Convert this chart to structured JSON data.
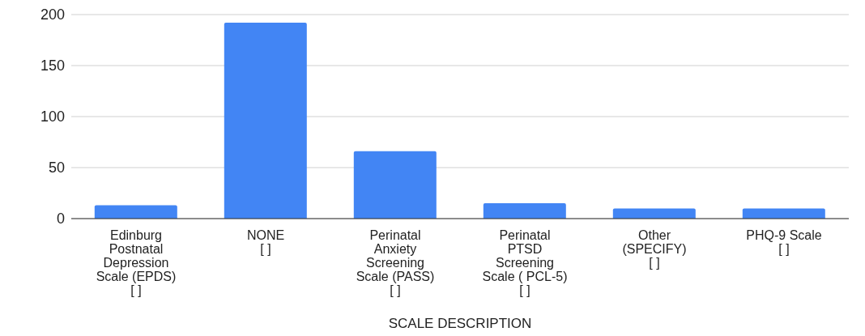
{
  "chart_data": {
    "type": "bar",
    "xlabel": "SCALE DESCRIPTION",
    "categories": [
      "Edinburg\nPostnatal\nDepression\nScale (EPDS)\n[ ]",
      "NONE\n[ ]",
      "Perinatal\nAnxiety\nScreening\nScale (PASS)\n[ ]",
      "Perinatal\nPTSD\nScreening\nScale ( PCL-5)\n[ ]",
      "Other\n(SPECIFY)\n[ ]",
      "PHQ-9 Scale\n[ ]"
    ],
    "values": [
      13,
      192,
      66,
      15,
      10,
      10
    ],
    "color": "#4285f4",
    "ylim": [
      0,
      200
    ],
    "yticks": [
      0,
      50,
      100,
      150,
      200
    ],
    "grid": "y"
  }
}
